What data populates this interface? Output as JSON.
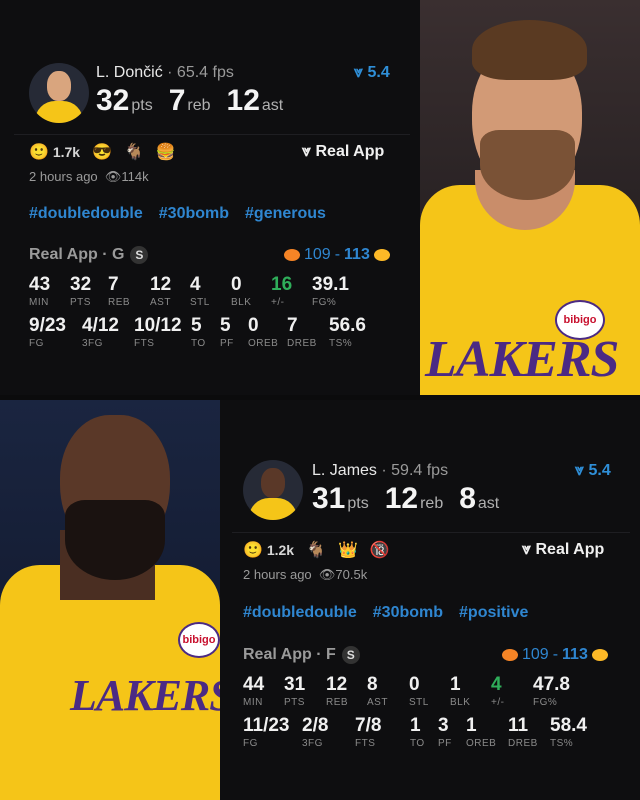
{
  "colors": {
    "accent": "#2f86d0",
    "positive": "#2fae5a",
    "background": "#0b0b0c"
  },
  "posts": [
    {
      "player": "L. Dončić",
      "fps": "65.4 fps",
      "rating": "5.4",
      "pts": "32",
      "reb": "7",
      "ast": "12",
      "pts_label": "pts",
      "reb_label": "reb",
      "ast_label": "ast",
      "reaction_count": "1.7k",
      "reactions": [
        "😎",
        "🐐",
        "🍔"
      ],
      "source_label": "Real App",
      "time": "2 hours ago",
      "views": "114k",
      "tags": [
        "#doubledouble",
        "#30bomb",
        "#generous"
      ],
      "position": "Real App · G",
      "s_badge": "S",
      "score_away": "109",
      "score_home": "113",
      "row1": [
        {
          "v": "43",
          "l": "MIN"
        },
        {
          "v": "32",
          "l": "PTS"
        },
        {
          "v": "7",
          "l": "REB"
        },
        {
          "v": "12",
          "l": "AST"
        },
        {
          "v": "4",
          "l": "STL"
        },
        {
          "v": "0",
          "l": "BLK"
        },
        {
          "v": "16",
          "l": "+/-",
          "green": true
        },
        {
          "v": "39.1",
          "l": "FG%"
        }
      ],
      "row2": [
        {
          "v": "9/23",
          "l": "FG"
        },
        {
          "v": "4/12",
          "l": "3FG"
        },
        {
          "v": "10/12",
          "l": "FTS"
        },
        {
          "v": "5",
          "l": "TO"
        },
        {
          "v": "5",
          "l": "PF"
        },
        {
          "v": "0",
          "l": "OREB"
        },
        {
          "v": "7",
          "l": "DREB"
        },
        {
          "v": "56.6",
          "l": "TS%"
        }
      ],
      "jersey_text": "LAKERS",
      "sponsor": "bibigo"
    },
    {
      "player": "L. James",
      "fps": "59.4 fps",
      "rating": "5.4",
      "pts": "31",
      "reb": "12",
      "ast": "8",
      "pts_label": "pts",
      "reb_label": "reb",
      "ast_label": "ast",
      "reaction_count": "1.2k",
      "reactions": [
        "🐐",
        "👑",
        "🔞"
      ],
      "source_label": "Real App",
      "time": "2 hours ago",
      "views": "70.5k",
      "tags": [
        "#doubledouble",
        "#30bomb",
        "#positive"
      ],
      "position": "Real App · F",
      "s_badge": "S",
      "score_away": "109",
      "score_home": "113",
      "row1": [
        {
          "v": "44",
          "l": "MIN"
        },
        {
          "v": "31",
          "l": "PTS"
        },
        {
          "v": "12",
          "l": "REB"
        },
        {
          "v": "8",
          "l": "AST"
        },
        {
          "v": "0",
          "l": "STL"
        },
        {
          "v": "1",
          "l": "BLK"
        },
        {
          "v": "4",
          "l": "+/-",
          "green": true
        },
        {
          "v": "47.8",
          "l": "FG%"
        }
      ],
      "row2": [
        {
          "v": "11/23",
          "l": "FG"
        },
        {
          "v": "2/8",
          "l": "3FG"
        },
        {
          "v": "7/8",
          "l": "FTS"
        },
        {
          "v": "1",
          "l": "TO"
        },
        {
          "v": "3",
          "l": "PF"
        },
        {
          "v": "1",
          "l": "OREB"
        },
        {
          "v": "11",
          "l": "DREB"
        },
        {
          "v": "58.4",
          "l": "TS%"
        }
      ],
      "jersey_text": "LAKERS",
      "sponsor": "bibigo"
    }
  ]
}
